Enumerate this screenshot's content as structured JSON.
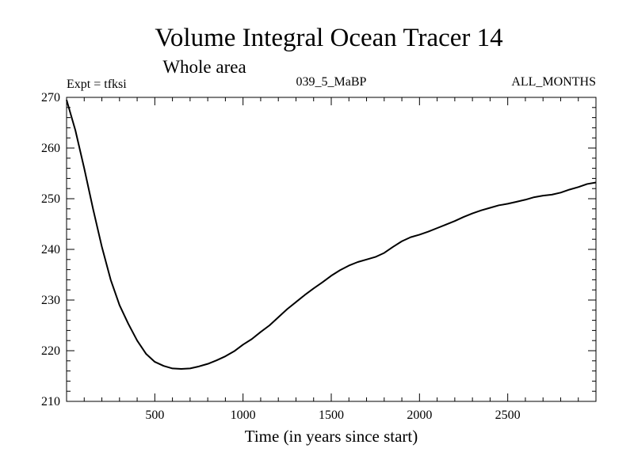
{
  "chart_data": {
    "type": "line",
    "title": "Volume Integral Ocean Tracer 14",
    "subtitle": "Whole area",
    "annotations": {
      "experiment": "Expt = tfksi",
      "run": "039_5_MaBP",
      "period": "ALL_MONTHS"
    },
    "xlabel": "Time (in years since start)",
    "ylabel": "",
    "xlim": [
      0,
      3000
    ],
    "ylim": [
      210,
      270
    ],
    "xticks": [
      500,
      1000,
      1500,
      2000,
      2500
    ],
    "xtick_labels": [
      "500",
      "1000",
      "1500",
      "2000",
      "2500"
    ],
    "yticks": [
      210,
      220,
      230,
      240,
      250,
      260,
      270
    ],
    "ytick_labels": [
      "210",
      "220",
      "230",
      "240",
      "250",
      "260",
      "270"
    ],
    "grid": false,
    "series": [
      {
        "name": "Ocean Tracer 14",
        "x": [
          0,
          50,
          100,
          150,
          200,
          250,
          300,
          350,
          400,
          450,
          500,
          550,
          600,
          650,
          700,
          750,
          800,
          850,
          900,
          950,
          1000,
          1050,
          1100,
          1150,
          1200,
          1250,
          1300,
          1350,
          1400,
          1450,
          1500,
          1550,
          1600,
          1650,
          1700,
          1750,
          1800,
          1850,
          1900,
          1950,
          2000,
          2050,
          2100,
          2150,
          2200,
          2250,
          2300,
          2350,
          2400,
          2450,
          2500,
          2550,
          2600,
          2650,
          2700,
          2750,
          2800,
          2850,
          2900,
          2950,
          3000
        ],
        "y": [
          269.5,
          263.5,
          256.0,
          248.0,
          240.5,
          234.0,
          229.0,
          225.3,
          222.0,
          219.4,
          217.8,
          217.0,
          216.5,
          216.4,
          216.5,
          216.9,
          217.4,
          218.1,
          218.9,
          219.9,
          221.2,
          222.3,
          223.7,
          225.0,
          226.6,
          228.2,
          229.6,
          231.0,
          232.3,
          233.5,
          234.8,
          235.9,
          236.8,
          237.5,
          238.0,
          238.5,
          239.3,
          240.5,
          241.6,
          242.4,
          242.9,
          243.5,
          244.2,
          244.9,
          245.6,
          246.4,
          247.1,
          247.7,
          248.2,
          248.7,
          249.0,
          249.4,
          249.8,
          250.3,
          250.6,
          250.8,
          251.2,
          251.8,
          252.3,
          252.9,
          253.2
        ]
      }
    ]
  }
}
